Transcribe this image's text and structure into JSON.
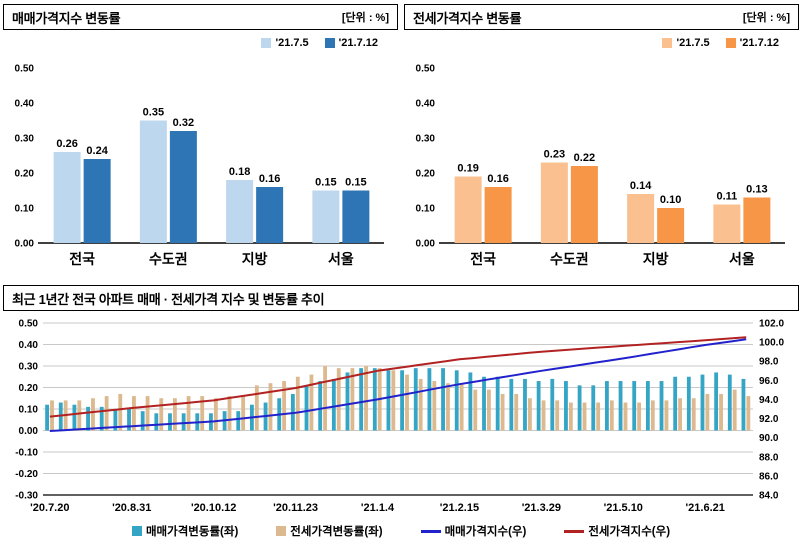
{
  "chart_data": [
    {
      "type": "bar",
      "title": "매매가격지수 변동률",
      "unit_label": "[단위 : %]",
      "categories": [
        "전국",
        "수도권",
        "지방",
        "서울"
      ],
      "series": [
        {
          "name": "'21.7.5",
          "color": "#BDD7EE",
          "values": [
            0.26,
            0.35,
            0.18,
            0.15
          ]
        },
        {
          "name": "'21.7.12",
          "color": "#2E75B6",
          "values": [
            0.24,
            0.32,
            0.16,
            0.15
          ]
        }
      ],
      "ylim": [
        0,
        0.5
      ],
      "ytick_step": 0.1,
      "value_labels": true,
      "legend_position": "top-right"
    },
    {
      "type": "bar",
      "title": "전세가격지수 변동률",
      "unit_label": "[단위 : %]",
      "categories": [
        "전국",
        "수도권",
        "지방",
        "서울"
      ],
      "series": [
        {
          "name": "'21.7.5",
          "color": "#FAC090",
          "values": [
            0.19,
            0.23,
            0.14,
            0.11
          ]
        },
        {
          "name": "'21.7.12",
          "color": "#F79646",
          "values": [
            0.16,
            0.22,
            0.1,
            0.13
          ]
        }
      ],
      "ylim": [
        0,
        0.5
      ],
      "ytick_step": 0.1,
      "value_labels": true,
      "legend_position": "top-right"
    },
    {
      "type": "combo",
      "title": "최근 1년간 전국 아파트 매매 · 전세가격 지수 및 변동률 추이",
      "x_tick_labels": [
        "'20.7.20",
        "'20.8.31",
        "'20.10.12",
        "'20.11.23",
        "'21.1.4",
        "'21.2.15",
        "'21.3.29",
        "'21.5.10",
        "'21.6.21"
      ],
      "x_tick_positions": [
        0,
        6,
        12,
        18,
        24,
        30,
        36,
        42,
        48
      ],
      "n_points": 52,
      "left_axis": {
        "min": -0.3,
        "max": 0.5,
        "step": 0.1
      },
      "right_axis": {
        "min": 84.0,
        "max": 102.0,
        "step": 2.0
      },
      "grid": true,
      "legend_position": "bottom",
      "bar_series": [
        {
          "name": "매매가격변동률(좌)",
          "color": "#35A5C6",
          "axis": "left",
          "values": [
            0.12,
            0.13,
            0.12,
            0.11,
            0.11,
            0.1,
            0.1,
            0.09,
            0.08,
            0.08,
            0.08,
            0.08,
            0.08,
            0.09,
            0.09,
            0.12,
            0.13,
            0.15,
            0.17,
            0.21,
            0.23,
            0.24,
            0.27,
            0.29,
            0.29,
            0.28,
            0.28,
            0.29,
            0.29,
            0.29,
            0.28,
            0.27,
            0.25,
            0.25,
            0.24,
            0.24,
            0.23,
            0.24,
            0.23,
            0.21,
            0.21,
            0.23,
            0.23,
            0.23,
            0.23,
            0.23,
            0.25,
            0.25,
            0.26,
            0.27,
            0.26,
            0.24
          ]
        },
        {
          "name": "전세가격변동률(좌)",
          "color": "#DCB98E",
          "axis": "left",
          "values": [
            0.14,
            0.14,
            0.14,
            0.15,
            0.16,
            0.17,
            0.16,
            0.16,
            0.15,
            0.15,
            0.16,
            0.16,
            0.15,
            0.16,
            0.16,
            0.21,
            0.22,
            0.23,
            0.25,
            0.26,
            0.3,
            0.29,
            0.29,
            0.3,
            0.29,
            0.28,
            0.26,
            0.24,
            0.23,
            0.22,
            0.22,
            0.19,
            0.19,
            0.17,
            0.17,
            0.15,
            0.14,
            0.14,
            0.13,
            0.13,
            0.13,
            0.14,
            0.13,
            0.13,
            0.14,
            0.14,
            0.15,
            0.15,
            0.17,
            0.17,
            0.19,
            0.16
          ]
        }
      ],
      "line_series": [
        {
          "name": "매매가격지수(우)",
          "color": "#2222CC",
          "axis": "right",
          "values": [
            90.7,
            90.78,
            90.87,
            90.95,
            91.03,
            91.12,
            91.2,
            91.28,
            91.37,
            91.45,
            91.53,
            91.62,
            91.7,
            91.85,
            92.0,
            92.15,
            92.3,
            92.45,
            92.6,
            92.83,
            93.07,
            93.3,
            93.53,
            93.77,
            94.0,
            94.27,
            94.53,
            94.8,
            95.07,
            95.33,
            95.6,
            95.83,
            96.07,
            96.3,
            96.53,
            96.77,
            97.0,
            97.22,
            97.43,
            97.65,
            97.87,
            98.08,
            98.3,
            98.53,
            98.77,
            99.0,
            99.23,
            99.47,
            99.7,
            99.9,
            100.1,
            100.3
          ]
        },
        {
          "name": "전세가격지수(우)",
          "color": "#B22222",
          "axis": "right",
          "values": [
            92.2,
            92.35,
            92.5,
            92.65,
            92.8,
            92.95,
            93.1,
            93.23,
            93.37,
            93.5,
            93.63,
            93.77,
            93.9,
            94.12,
            94.33,
            94.55,
            94.77,
            94.98,
            95.2,
            95.5,
            95.8,
            96.1,
            96.4,
            96.7,
            97.0,
            97.2,
            97.4,
            97.6,
            97.8,
            98.0,
            98.2,
            98.33,
            98.47,
            98.6,
            98.73,
            98.87,
            99.0,
            99.1,
            99.2,
            99.3,
            99.4,
            99.5,
            99.6,
            99.7,
            99.8,
            99.9,
            100.0,
            100.1,
            100.2,
            100.3,
            100.4,
            100.5
          ]
        }
      ]
    }
  ]
}
